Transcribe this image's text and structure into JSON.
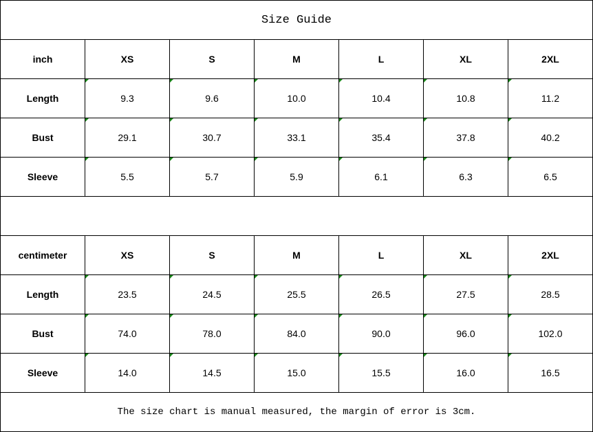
{
  "title": "Size Guide",
  "inch": {
    "unit": "inch",
    "sizes": [
      "XS",
      "S",
      "M",
      "L",
      "XL",
      "2XL"
    ],
    "rows": [
      {
        "label": "Length",
        "values": [
          "9.3",
          "9.6",
          "10.0",
          "10.4",
          "10.8",
          "11.2"
        ]
      },
      {
        "label": "Bust",
        "values": [
          "29.1",
          "30.7",
          "33.1",
          "35.4",
          "37.8",
          "40.2"
        ]
      },
      {
        "label": "Sleeve",
        "values": [
          "5.5",
          "5.7",
          "5.9",
          "6.1",
          "6.3",
          "6.5"
        ]
      }
    ]
  },
  "cm": {
    "unit": "centimeter",
    "sizes": [
      "XS",
      "S",
      "M",
      "L",
      "XL",
      "2XL"
    ],
    "rows": [
      {
        "label": "Length",
        "values": [
          "23.5",
          "24.5",
          "25.5",
          "26.5",
          "27.5",
          "28.5"
        ]
      },
      {
        "label": "Bust",
        "values": [
          "74.0",
          "78.0",
          "84.0",
          "90.0",
          "96.0",
          "102.0"
        ]
      },
      {
        "label": "Sleeve",
        "values": [
          "14.0",
          "14.5",
          "15.0",
          "15.5",
          "16.0",
          "16.5"
        ]
      }
    ]
  },
  "note": "The size chart is manual measured, the margin of error is 3cm.",
  "colors": {
    "indicator": "#1a8a1a"
  }
}
